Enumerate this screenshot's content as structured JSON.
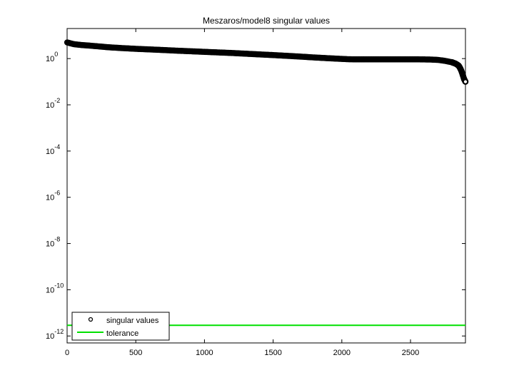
{
  "chart_data": {
    "type": "scatter",
    "title": "Meszaros/model8 singular values",
    "xlabel": "",
    "ylabel": "",
    "xlim": [
      0,
      2900
    ],
    "ylim": [
      5e-13,
      20
    ],
    "yscale": "log",
    "xticks": [
      0,
      500,
      1000,
      1500,
      2000,
      2500
    ],
    "yticks": [
      {
        "value": 1,
        "base": "10",
        "exp": "0"
      },
      {
        "value": 0.01,
        "base": "10",
        "exp": "-2"
      },
      {
        "value": 0.0001,
        "base": "10",
        "exp": "-4"
      },
      {
        "value": 1e-06,
        "base": "10",
        "exp": "-6"
      },
      {
        "value": 1e-08,
        "base": "10",
        "exp": "-8"
      },
      {
        "value": 1e-10,
        "base": "10",
        "exp": "-10"
      },
      {
        "value": 1e-12,
        "base": "10",
        "exp": "-12"
      }
    ],
    "grid": false,
    "legend_position": "bottom-left",
    "series": [
      {
        "name": "singular values",
        "marker": "circle",
        "color": "#000000",
        "x": [
          1,
          50,
          100,
          200,
          300,
          400,
          500,
          600,
          700,
          800,
          900,
          1000,
          1100,
          1200,
          1300,
          1400,
          1500,
          1600,
          1700,
          1800,
          1900,
          2000,
          2050,
          2100,
          2200,
          2300,
          2400,
          2500,
          2550,
          2600,
          2650,
          2700,
          2750,
          2800,
          2830,
          2850,
          2860,
          2870,
          2880,
          2890,
          2900
        ],
        "y": [
          5.0,
          4.2,
          3.9,
          3.5,
          3.1,
          2.85,
          2.65,
          2.5,
          2.35,
          2.2,
          2.08,
          1.96,
          1.85,
          1.75,
          1.63,
          1.52,
          1.42,
          1.32,
          1.22,
          1.12,
          1.04,
          0.97,
          0.94,
          0.93,
          0.93,
          0.93,
          0.93,
          0.93,
          0.93,
          0.92,
          0.91,
          0.88,
          0.8,
          0.7,
          0.6,
          0.5,
          0.4,
          0.3,
          0.2,
          0.13,
          0.1
        ]
      },
      {
        "name": "tolerance",
        "marker": "line",
        "color": "#00e000",
        "x": [
          0,
          2900
        ],
        "y": [
          2.9e-12,
          2.9e-12
        ]
      }
    ]
  }
}
